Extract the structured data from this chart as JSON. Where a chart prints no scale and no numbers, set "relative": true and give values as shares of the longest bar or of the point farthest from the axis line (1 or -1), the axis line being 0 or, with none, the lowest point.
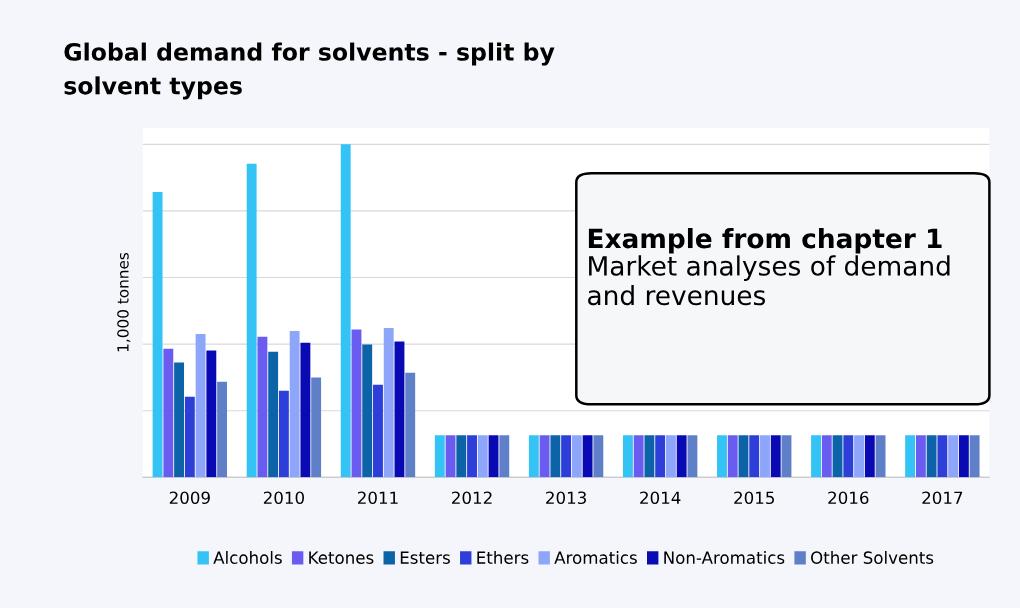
{
  "chart_data": {
    "type": "bar",
    "title": "Global demand for solvents - split by\nsolvent types",
    "ylabel": "1,000 tonnes",
    "relative": true,
    "grid": "y",
    "legend": "bottom",
    "categories": [
      "2009",
      "2010",
      "2011",
      "2012",
      "2013",
      "2014",
      "2015",
      "2016",
      "2017"
    ],
    "annotations": [
      "Example from chapter 1",
      "Market analyses of demand\nand revenues"
    ],
    "series": [
      {
        "name": "Alcohols",
        "color": "#33c3f5",
        "values": [
          0.857,
          0.942,
          1,
          0.126,
          0.126,
          0.126,
          0.126,
          0.126,
          0.126
        ]
      },
      {
        "name": "Ketones",
        "color": "#6a5cf0",
        "values": [
          0.386,
          0.422,
          0.444,
          0.126,
          0.126,
          0.126,
          0.126,
          0.126,
          0.126
        ]
      },
      {
        "name": "Esters",
        "color": "#0d63a8",
        "values": [
          0.345,
          0.377,
          0.399,
          0.126,
          0.126,
          0.126,
          0.126,
          0.126,
          0.126
        ]
      },
      {
        "name": "Ethers",
        "color": "#2e3ed8",
        "values": [
          0.242,
          0.26,
          0.278,
          0.126,
          0.126,
          0.126,
          0.126,
          0.126,
          0.126
        ]
      },
      {
        "name": "Aromatics",
        "color": "#8ea6fa",
        "values": [
          0.43,
          0.439,
          0.448,
          0.126,
          0.126,
          0.126,
          0.126,
          0.126,
          0.126
        ]
      },
      {
        "name": "Non-Aromatics",
        "color": "#0a0ab4",
        "values": [
          0.381,
          0.404,
          0.408,
          0.126,
          0.126,
          0.126,
          0.126,
          0.126,
          0.126
        ]
      },
      {
        "name": "Other Solvents",
        "color": "#5f80c8",
        "values": [
          0.287,
          0.3,
          0.314,
          0.126,
          0.126,
          0.126,
          0.126,
          0.126,
          0.126
        ]
      }
    ]
  }
}
